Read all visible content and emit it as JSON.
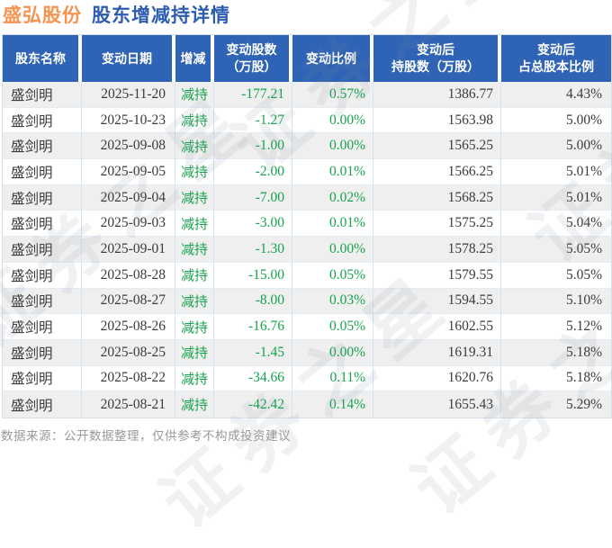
{
  "title": {
    "stock_name": "盛弘股份",
    "subtitle": "股东增减持详情"
  },
  "watermark": {
    "text": "证券之星"
  },
  "colors": {
    "header_bg": "#2e63b5",
    "title_orange": "#f79350",
    "title_blue": "#2c5db0",
    "decrease_green": "#17a34d",
    "row_alt_gray": "#efefef",
    "cell_border": "#d5e2f1",
    "footer_gray": "#999999"
  },
  "table": {
    "column_names": [
      "shareholder-name",
      "change-date",
      "action",
      "change-shares",
      "change-ratio",
      "shares-after-change",
      "ratio-after-change"
    ],
    "headers": [
      {
        "lines": [
          "股东名称"
        ]
      },
      {
        "lines": [
          "变动日期"
        ]
      },
      {
        "lines": [
          "增减"
        ]
      },
      {
        "lines": [
          "变动股数",
          "（万股）"
        ]
      },
      {
        "lines": [
          "变动比例"
        ]
      },
      {
        "lines": [
          "变动后",
          "持股数（万股）"
        ]
      },
      {
        "lines": [
          "变动后",
          "占总股本比例"
        ]
      }
    ],
    "rows": [
      [
        "盛剑明",
        "2025-11-20",
        "减持",
        "-177.21",
        "0.57%",
        "1386.77",
        "4.43%"
      ],
      [
        "盛剑明",
        "2025-10-23",
        "减持",
        "-1.27",
        "0.00%",
        "1563.98",
        "5.00%"
      ],
      [
        "盛剑明",
        "2025-09-08",
        "减持",
        "-1.00",
        "0.00%",
        "1565.25",
        "5.00%"
      ],
      [
        "盛剑明",
        "2025-09-05",
        "减持",
        "-2.00",
        "0.01%",
        "1566.25",
        "5.01%"
      ],
      [
        "盛剑明",
        "2025-09-04",
        "减持",
        "-7.00",
        "0.02%",
        "1568.25",
        "5.01%"
      ],
      [
        "盛剑明",
        "2025-09-03",
        "减持",
        "-3.00",
        "0.01%",
        "1575.25",
        "5.04%"
      ],
      [
        "盛剑明",
        "2025-09-01",
        "减持",
        "-1.30",
        "0.00%",
        "1578.25",
        "5.05%"
      ],
      [
        "盛剑明",
        "2025-08-28",
        "减持",
        "-15.00",
        "0.05%",
        "1579.55",
        "5.05%"
      ],
      [
        "盛剑明",
        "2025-08-27",
        "减持",
        "-8.00",
        "0.03%",
        "1594.55",
        "5.10%"
      ],
      [
        "盛剑明",
        "2025-08-26",
        "减持",
        "-16.76",
        "0.05%",
        "1602.55",
        "5.12%"
      ],
      [
        "盛剑明",
        "2025-08-25",
        "减持",
        "-1.45",
        "0.00%",
        "1619.31",
        "5.18%"
      ],
      [
        "盛剑明",
        "2025-08-22",
        "减持",
        "-34.66",
        "0.11%",
        "1620.76",
        "5.18%"
      ],
      [
        "盛剑明",
        "2025-08-21",
        "减持",
        "-42.42",
        "0.14%",
        "1655.43",
        "5.29%"
      ]
    ]
  },
  "footer": {
    "note": "数据来源：公开数据整理，仅供参考不构成投资建议"
  }
}
